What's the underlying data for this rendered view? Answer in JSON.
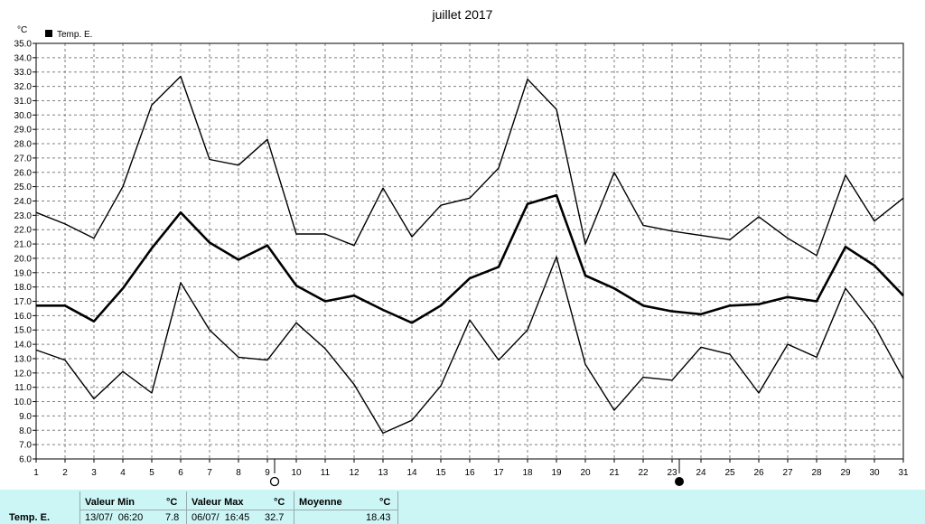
{
  "chart_data": {
    "type": "line",
    "title": "juillet 2017",
    "ylabel": "°C",
    "legend": "Temp. E.",
    "legend_position": "top-left",
    "grid": true,
    "xlim": [
      1,
      31
    ],
    "ylim": [
      6.0,
      35.0
    ],
    "y_step": 1.0,
    "categories": [
      "1",
      "2",
      "3",
      "4",
      "5",
      "6",
      "7",
      "8",
      "9",
      "10",
      "11",
      "12",
      "13",
      "14",
      "15",
      "16",
      "17",
      "18",
      "19",
      "20",
      "21",
      "22",
      "23",
      "24",
      "25",
      "26",
      "27",
      "28",
      "29",
      "30",
      "31"
    ],
    "series": [
      {
        "role": "max",
        "values": [
          23.2,
          22.4,
          21.4,
          25.0,
          30.7,
          32.7,
          26.9,
          26.5,
          28.3,
          21.7,
          21.7,
          20.9,
          24.9,
          21.5,
          23.7,
          24.2,
          26.3,
          32.5,
          30.4,
          21.0,
          26.0,
          22.3,
          21.9,
          21.6,
          21.3,
          22.9,
          21.4,
          20.2,
          25.8,
          22.6,
          24.2
        ]
      },
      {
        "role": "mean",
        "values": [
          16.7,
          16.7,
          15.6,
          17.9,
          20.7,
          23.2,
          21.1,
          19.9,
          20.9,
          18.1,
          17.0,
          17.4,
          16.4,
          15.5,
          16.7,
          18.6,
          19.4,
          23.8,
          24.4,
          18.8,
          17.9,
          16.7,
          16.3,
          16.1,
          16.7,
          16.8,
          17.3,
          17.0,
          20.8,
          19.5,
          17.4
        ]
      },
      {
        "role": "min",
        "values": [
          13.6,
          12.9,
          10.2,
          12.1,
          10.6,
          18.3,
          15.0,
          13.1,
          12.9,
          15.5,
          13.7,
          11.2,
          7.8,
          8.7,
          11.1,
          15.7,
          12.9,
          15.0,
          20.1,
          12.6,
          9.4,
          11.7,
          11.5,
          13.8,
          13.3,
          10.6,
          14.0,
          13.1,
          17.9,
          15.3,
          11.6
        ]
      }
    ],
    "moon_markers": [
      {
        "day": 9,
        "phase": "full",
        "symbol": "○"
      },
      {
        "day": 23,
        "phase": "new",
        "symbol": "●"
      }
    ]
  },
  "stats": {
    "row_label": "Temp. E.",
    "min_header": "Valeur Min",
    "max_header": "Valeur Max",
    "mean_header": "Moyenne",
    "unit": "°C",
    "min_time": "13/07/  06:20",
    "min_value": "7.8",
    "max_time": "06/07/  16:45",
    "max_value": "32.7",
    "mean_value": "18.43"
  },
  "colors": {
    "line": "#000000",
    "grid": "#808080",
    "stats_background": "#ccf5f5"
  }
}
